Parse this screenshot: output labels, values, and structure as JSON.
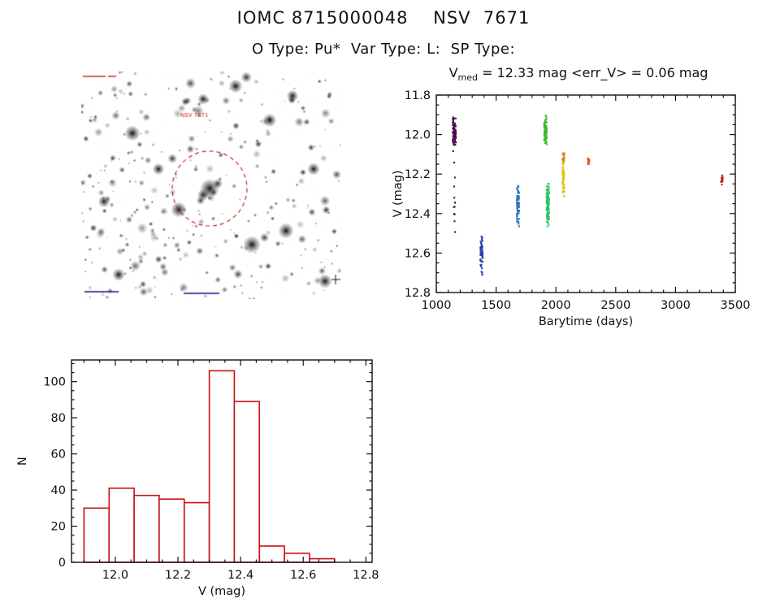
{
  "page": {
    "title": "IOMC 8715000048    NSV  7671",
    "subtitle": "O Type: Pu*  Var Type: L:  SP Type:"
  },
  "finder": {
    "label": "NSV 7671",
    "circle_color": "#cc2222"
  },
  "chart_data": [
    {
      "id": "lightcurve",
      "type": "scatter",
      "title": {
        "v": "V",
        "sub": "med",
        "rest": " = 12.33 mag <err_V> = 0.06 mag"
      },
      "xlabel": "Barytime (days)",
      "ylabel": "V (mag)",
      "xlim": [
        1000,
        3500
      ],
      "ylim": [
        11.8,
        12.8
      ],
      "y_inverted": true,
      "xticks": [
        1000,
        1500,
        2000,
        2500,
        3000,
        3500
      ],
      "yticks": [
        11.8,
        12.0,
        12.2,
        12.4,
        12.6,
        12.8
      ],
      "x_minor_step": 100,
      "y_minor_step": 0.05,
      "clusters": [
        {
          "x": 1150,
          "x_spread": 14,
          "v_min": 11.9,
          "v_max": 12.09,
          "n": 95,
          "color": "#4a0d50"
        },
        {
          "x": 1152,
          "x_spread": 8,
          "v_min": 12.12,
          "v_max": 12.52,
          "n": 12,
          "color": "#4a0d50"
        },
        {
          "x": 1378,
          "x_spread": 10,
          "v_min": 12.5,
          "v_max": 12.68,
          "n": 55,
          "color": "#2b3fa8"
        },
        {
          "x": 1380,
          "x_spread": 5,
          "v_min": 12.68,
          "v_max": 12.72,
          "n": 4,
          "color": "#2b3fa8"
        },
        {
          "x": 1682,
          "x_spread": 10,
          "v_min": 12.24,
          "v_max": 12.47,
          "n": 80,
          "color": "#2f74c0"
        },
        {
          "x": 1912,
          "x_spread": 11,
          "v_min": 11.9,
          "v_max": 12.06,
          "n": 100,
          "color": "#3dbb2e"
        },
        {
          "x": 1932,
          "x_spread": 11,
          "v_min": 12.24,
          "v_max": 12.48,
          "n": 120,
          "color": "#2ec46a"
        },
        {
          "x": 2062,
          "x_spread": 8,
          "v_min": 12.08,
          "v_max": 12.16,
          "n": 25,
          "color": "#e0820f"
        },
        {
          "x": 2062,
          "x_spread": 8,
          "v_min": 12.12,
          "v_max": 12.33,
          "n": 70,
          "color": "#e3c117"
        },
        {
          "x": 2272,
          "x_spread": 7,
          "v_min": 12.11,
          "v_max": 12.16,
          "n": 16,
          "color": "#e0560d"
        },
        {
          "x": 3388,
          "x_spread": 7,
          "v_min": 12.19,
          "v_max": 12.27,
          "n": 18,
          "color": "#cc2222"
        }
      ]
    },
    {
      "id": "histogram",
      "type": "bar",
      "xlabel": "V (mag)",
      "ylabel": "N",
      "bin_start": 11.9,
      "bin_width": 0.08,
      "values": [
        30,
        41,
        37,
        35,
        33,
        106,
        89,
        9,
        5,
        2
      ],
      "xlim": [
        11.86,
        12.82
      ],
      "ylim": [
        0,
        112
      ],
      "xticks": [
        12.0,
        12.2,
        12.4,
        12.6,
        12.8
      ],
      "yticks": [
        0,
        20,
        40,
        60,
        80,
        100
      ],
      "x_minor_step": 0.05,
      "y_minor_step": 5,
      "bar_color": "#cc1111"
    }
  ]
}
